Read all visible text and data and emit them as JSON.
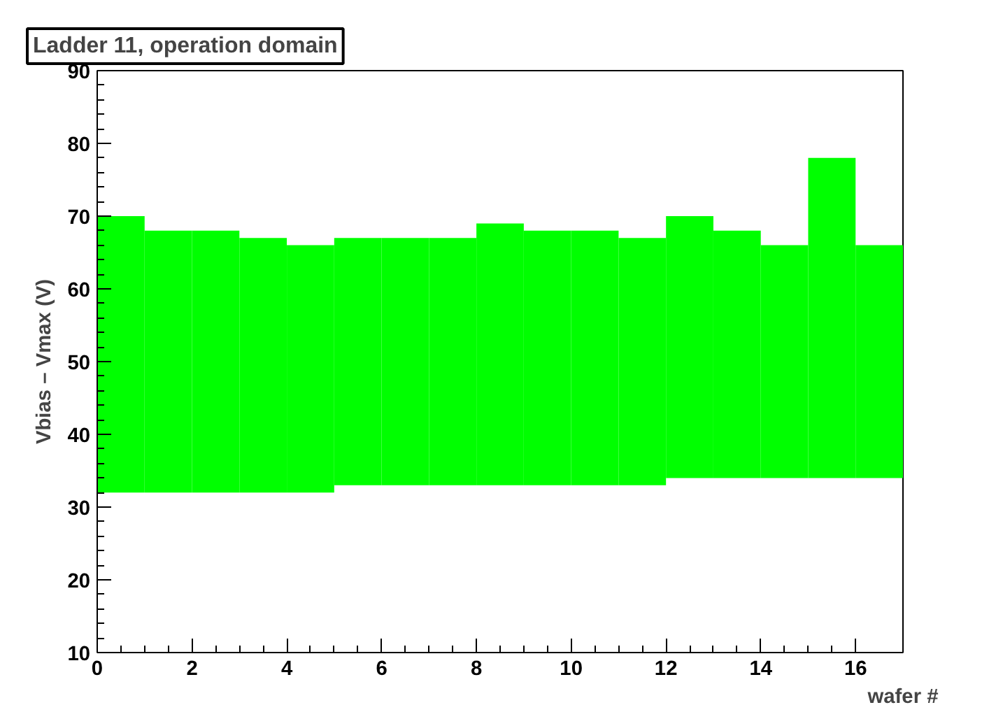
{
  "chart_data": {
    "type": "bar",
    "title": "Ladder 11, operation domain",
    "xlabel": "wafer #",
    "ylabel": "Vbias – Vmax (V)",
    "x": [
      0.5,
      1.5,
      2.5,
      3.5,
      4.5,
      5.5,
      6.5,
      7.5,
      8.5,
      9.5,
      10.5,
      11.5,
      12.5,
      13.5,
      14.5,
      15.5,
      16.5
    ],
    "base": [
      32,
      32,
      32,
      32,
      32,
      33,
      33,
      33,
      33,
      33,
      33,
      33,
      34,
      34,
      34,
      34,
      34
    ],
    "values": [
      38,
      36,
      36,
      35,
      34,
      34,
      34,
      34,
      36,
      35,
      35,
      34,
      36,
      34,
      32,
      44,
      32
    ],
    "color": "#00ff00",
    "xlim": [
      0,
      17
    ],
    "xticks": [
      0,
      2,
      4,
      6,
      8,
      10,
      12,
      14,
      16
    ],
    "ylim": [
      10,
      90
    ],
    "yticks": [
      10,
      20,
      30,
      40,
      50,
      60,
      70,
      80,
      90
    ],
    "grid": false
  }
}
